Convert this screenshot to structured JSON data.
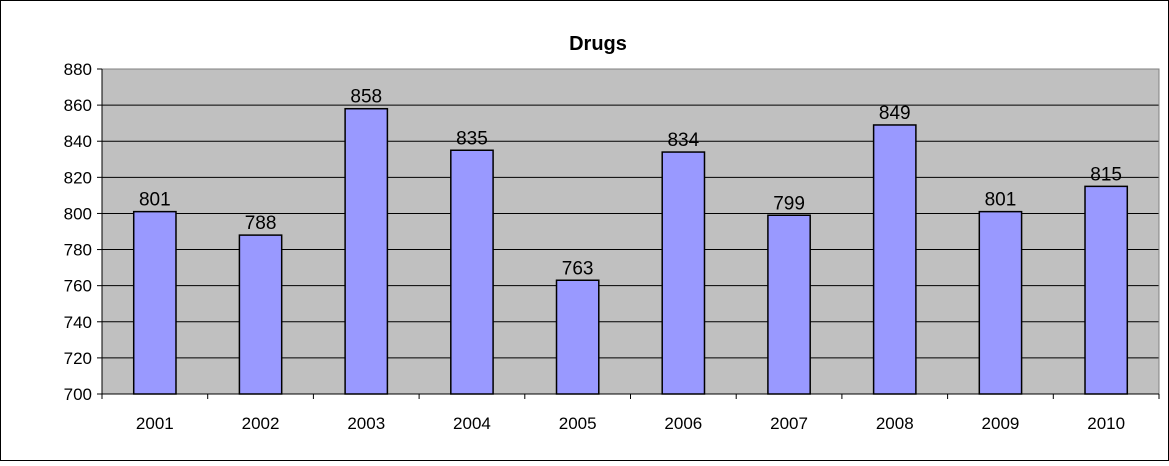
{
  "chart_data": {
    "type": "bar",
    "title": "Drugs",
    "xlabel": "",
    "ylabel": "",
    "categories": [
      "2001",
      "2002",
      "2003",
      "2004",
      "2005",
      "2006",
      "2007",
      "2008",
      "2009",
      "2010"
    ],
    "values": [
      801,
      788,
      858,
      835,
      763,
      834,
      799,
      849,
      801,
      815
    ],
    "ylim": [
      700,
      880
    ],
    "yticks": [
      700,
      720,
      740,
      760,
      780,
      800,
      820,
      840,
      860,
      880
    ],
    "grid": true,
    "legend": "none",
    "colors": {
      "bar_fill": "#9999ff",
      "bar_stroke": "#000000",
      "plot_background": "#c0c0c0",
      "gridline": "#000000"
    }
  }
}
